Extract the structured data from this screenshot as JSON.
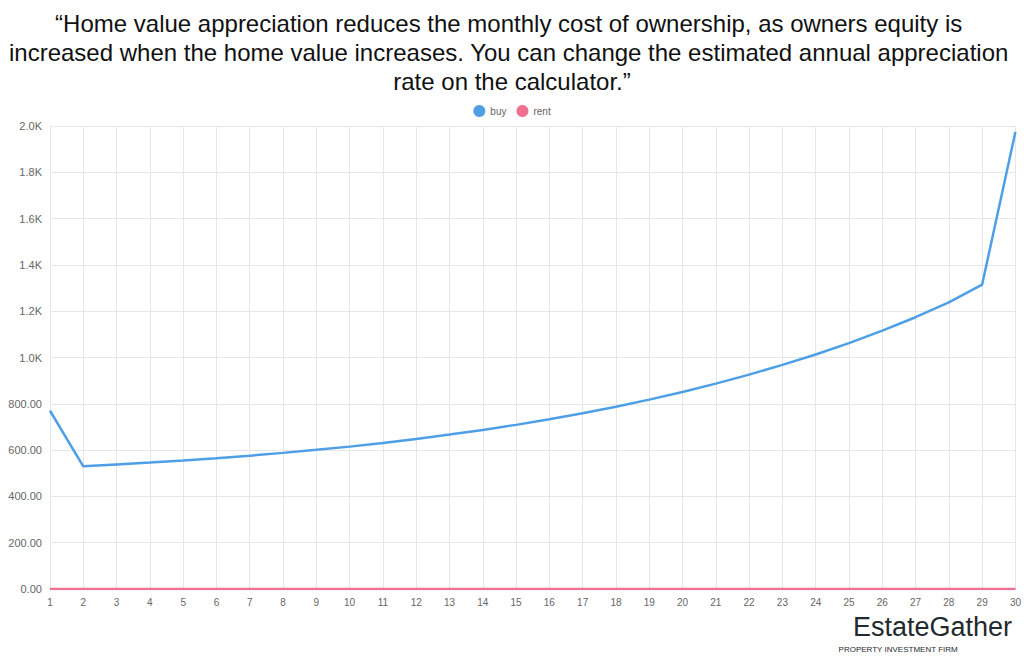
{
  "chart_data": {
    "type": "line",
    "title": "“Home value appreciation reduces the monthly cost of ownership, as owners equity is increased when the home value increases. You can change the estimated annual appreciation rate on the calculator.”",
    "categories": [
      "1",
      "2",
      "3",
      "4",
      "5",
      "6",
      "7",
      "8",
      "9",
      "10",
      "11",
      "12",
      "13",
      "14",
      "15",
      "16",
      "17",
      "18",
      "19",
      "20",
      "21",
      "22",
      "23",
      "24",
      "25",
      "26",
      "27",
      "28",
      "29",
      "30"
    ],
    "series": [
      {
        "name": "buy",
        "color": "#4e9fe5",
        "values": [
          770,
          530,
          538,
          546,
          555,
          565,
          576,
          588,
          601,
          615,
          631,
          648,
          667,
          687,
          709,
          733,
          759,
          787,
          818,
          851,
          887,
          926,
          968,
          1013,
          1062,
          1116,
          1174,
          1238,
          1315,
          1975
        ]
      },
      {
        "name": "rent",
        "color": "#f0708f",
        "values": [
          0,
          0,
          0,
          0,
          0,
          0,
          0,
          0,
          0,
          0,
          0,
          0,
          0,
          0,
          0,
          0,
          0,
          0,
          0,
          0,
          0,
          0,
          0,
          0,
          0,
          0,
          0,
          0,
          0,
          0
        ]
      }
    ],
    "ylim": [
      0,
      2000
    ],
    "yticks": [
      {
        "value": 0,
        "label": "0.00"
      },
      {
        "value": 200,
        "label": "200.00"
      },
      {
        "value": 400,
        "label": "400.00"
      },
      {
        "value": 600,
        "label": "600.00"
      },
      {
        "value": 800,
        "label": "800.00"
      },
      {
        "value": 1000,
        "label": "1.0K"
      },
      {
        "value": 1200,
        "label": "1.2K"
      },
      {
        "value": 1400,
        "label": "1.4K"
      },
      {
        "value": 1600,
        "label": "1.6K"
      },
      {
        "value": 1800,
        "label": "1.8K"
      },
      {
        "value": 2000,
        "label": "2.0K"
      }
    ],
    "grid": true,
    "legend": "top",
    "marker": "none",
    "annotations": [
      "EstateGather",
      "PROPERTY INVESTMENT FIRM"
    ]
  }
}
